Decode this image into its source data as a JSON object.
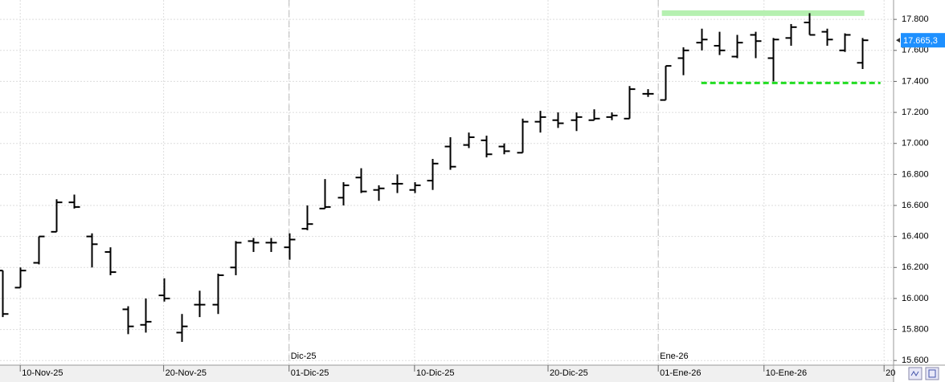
{
  "chart_data": {
    "type": "ohlc",
    "color": "#000000",
    "open": [
      16180,
      16070,
      16230,
      16430,
      16620,
      16400,
      16300,
      15930,
      15830,
      16020,
      15780,
      15960,
      15960,
      16200,
      16370,
      16360,
      16330,
      16450,
      16580,
      16650,
      16780,
      16700,
      16740,
      16700,
      16760,
      16980,
      16990,
      17020,
      16980,
      16940,
      17140,
      17150,
      17150,
      17150,
      17170,
      17160,
      17320,
      17280,
      17550,
      17650,
      17630,
      17560,
      17700,
      17550,
      17680,
      17780,
      17720,
      17600,
      17520
    ],
    "high": [
      16180,
      16200,
      16400,
      16640,
      16670,
      16420,
      16330,
      15950,
      16000,
      16130,
      15900,
      16050,
      16160,
      16370,
      16390,
      16390,
      16420,
      16600,
      16770,
      16750,
      16840,
      16730,
      16800,
      16750,
      16900,
      17040,
      17070,
      17050,
      17000,
      17160,
      17210,
      17200,
      17200,
      17220,
      17200,
      17370,
      17350,
      17500,
      17620,
      17740,
      17720,
      17700,
      17720,
      17680,
      17770,
      17840,
      17740,
      17710,
      17680
    ],
    "low": [
      15880,
      16070,
      16220,
      16430,
      16580,
      16200,
      16150,
      15770,
      15780,
      15980,
      15720,
      15880,
      15900,
      16150,
      16300,
      16300,
      16250,
      16440,
      16580,
      16600,
      16680,
      16630,
      16680,
      16680,
      16700,
      16830,
      16970,
      16910,
      16930,
      16940,
      17070,
      17100,
      17080,
      17150,
      17150,
      17160,
      17300,
      17280,
      17440,
      17600,
      17570,
      17550,
      17550,
      17400,
      17630,
      17700,
      17630,
      17590,
      17480
    ],
    "close": [
      15900,
      16180,
      16400,
      16620,
      16590,
      16350,
      16170,
      15820,
      15850,
      16000,
      15820,
      15960,
      16150,
      16360,
      16360,
      16360,
      16380,
      16480,
      16590,
      16730,
      16690,
      16710,
      16740,
      16730,
      16870,
      16850,
      17040,
      16930,
      16950,
      17140,
      17170,
      17130,
      17170,
      17160,
      17180,
      17350,
      17320,
      17500,
      17600,
      17670,
      17600,
      17650,
      17660,
      17670,
      17750,
      17700,
      17670,
      17700,
      17665.3
    ],
    "xlim": [
      -0.13,
      49.73
    ],
    "xticks": [
      {
        "value": 1,
        "label": "10-Nov-25"
      },
      {
        "value": 9,
        "label": "20-Nov-25"
      },
      {
        "value": 16,
        "label": "01-Dic-25"
      },
      {
        "value": 23,
        "label": "10-Dic-25"
      },
      {
        "value": 30.45,
        "label": "20-Dic-25"
      },
      {
        "value": 36.6,
        "label": "01-Ene-26"
      },
      {
        "value": 42.5,
        "label": "10-Ene-26"
      },
      {
        "value": 49.2,
        "label": "20"
      }
    ],
    "month_labels": [
      {
        "value": 16,
        "label": "Dic-25"
      },
      {
        "value": 36.6,
        "label": "Ene-26"
      }
    ],
    "ylim": [
      15570,
      17925
    ],
    "yticks": [
      {
        "value": 15600,
        "label": "15.600"
      },
      {
        "value": 15800,
        "label": "15.800"
      },
      {
        "value": 16000,
        "label": "16.000"
      },
      {
        "value": 16200,
        "label": "16.200"
      },
      {
        "value": 16400,
        "label": "16.400"
      },
      {
        "value": 16600,
        "label": "16.600"
      },
      {
        "value": 16800,
        "label": "16.800"
      },
      {
        "value": 17000,
        "label": "17.000"
      },
      {
        "value": 17200,
        "label": "17.200"
      },
      {
        "value": 17400,
        "label": "17.400"
      },
      {
        "value": 17600,
        "label": "17.600"
      },
      {
        "value": 17800,
        "label": "17.800"
      }
    ],
    "last_price": {
      "value": 17665.3,
      "label": "17.665,3",
      "color": "#1e90ff"
    },
    "resistance": {
      "value": 17840,
      "from": 36.8,
      "to": 48.1,
      "color": "#b5f0b0"
    },
    "support": {
      "value": 17390,
      "from": 39,
      "to": 49,
      "color": "#22dd22"
    },
    "grid": true
  }
}
